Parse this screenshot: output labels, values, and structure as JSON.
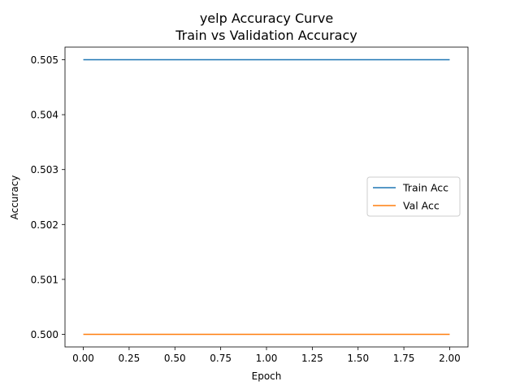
{
  "chart_data": {
    "type": "line",
    "title": "yelp Accuracy Curve",
    "subtitle": "Train vs Validation Accuracy",
    "xlabel": "Epoch",
    "ylabel": "Accuracy",
    "xlim": [
      -0.1,
      2.1
    ],
    "ylim": [
      0.49977,
      0.50523
    ],
    "x_ticks": [
      0.0,
      0.25,
      0.5,
      0.75,
      1.0,
      1.25,
      1.5,
      1.75,
      2.0
    ],
    "x_tick_labels": [
      "0.00",
      "0.25",
      "0.50",
      "0.75",
      "1.00",
      "1.25",
      "1.50",
      "1.75",
      "2.00"
    ],
    "y_ticks": [
      0.5,
      0.501,
      0.502,
      0.503,
      0.504,
      0.505
    ],
    "y_tick_labels": [
      "0.500",
      "0.501",
      "0.502",
      "0.503",
      "0.504",
      "0.505"
    ],
    "grid": false,
    "legend_position": "center-right",
    "x": [
      0,
      1,
      2
    ],
    "series": [
      {
        "name": "Train Acc",
        "values": [
          0.505,
          0.505,
          0.505
        ],
        "color": "#1f77b4"
      },
      {
        "name": "Val Acc",
        "values": [
          0.5,
          0.5,
          0.5
        ],
        "color": "#ff7f0e"
      }
    ]
  }
}
